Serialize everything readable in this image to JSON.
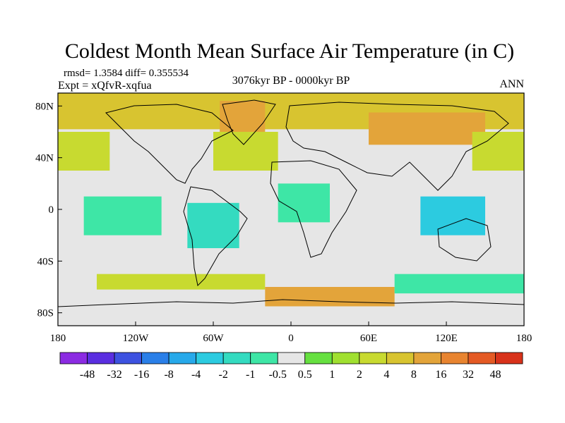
{
  "chart_data": {
    "type": "heatmap",
    "title": "Coldest Month Mean Surface Air Temperature (in C)",
    "stats_line": "rmsd= 1.3584 diff= 0.355534",
    "expt_line": "Expt = xQfvR-xqfua",
    "period": "3076kyr BP - 0000kyr BP",
    "season": "ANN",
    "x_ticks": [
      "180",
      "120W",
      "60W",
      "0",
      "60E",
      "120E",
      "180"
    ],
    "y_ticks": [
      "80N",
      "40N",
      "0",
      "40S",
      "80S"
    ],
    "x_range": [
      -180,
      180
    ],
    "y_range": [
      -90,
      90
    ],
    "colorbar": {
      "colors": [
        "#8b2be2",
        "#5a2ee0",
        "#3d52e0",
        "#2a7fe8",
        "#27a9ea",
        "#2ccbe0",
        "#34dbc0",
        "#3ee6a6",
        "#e6e6e6",
        "#66e040",
        "#a0e030",
        "#c8da30",
        "#d8c430",
        "#e3a43a",
        "#e88430",
        "#e45a24",
        "#d8321a"
      ],
      "labels": [
        "-48",
        "-32",
        "-16",
        "-8",
        "-4",
        "-2",
        "-1",
        "-0.5",
        "0.5",
        "1",
        "2",
        "4",
        "8",
        "16",
        "32",
        "48"
      ]
    },
    "regions": [
      {
        "name": "arctic-warming",
        "value": 4,
        "lon": [
          -180,
          180
        ],
        "lat": [
          62,
          90
        ]
      },
      {
        "name": "greenland-warming",
        "value": 8,
        "lon": [
          -55,
          -20
        ],
        "lat": [
          60,
          84
        ]
      },
      {
        "name": "siberia-warming",
        "value": 8,
        "lon": [
          60,
          150
        ],
        "lat": [
          50,
          75
        ]
      },
      {
        "name": "north-pacific-warming",
        "value": 2,
        "lon": [
          140,
          -140
        ],
        "lat": [
          30,
          60
        ]
      },
      {
        "name": "north-atlantic-warming",
        "value": 2,
        "lon": [
          -60,
          -10
        ],
        "lat": [
          30,
          60
        ]
      },
      {
        "name": "tropical-pacific-cooling",
        "value": -1,
        "lon": [
          -160,
          -100
        ],
        "lat": [
          -20,
          10
        ]
      },
      {
        "name": "south-america-cooling",
        "value": -2,
        "lon": [
          -80,
          -40
        ],
        "lat": [
          -30,
          5
        ]
      },
      {
        "name": "africa-cooling",
        "value": -1,
        "lon": [
          -10,
          30
        ],
        "lat": [
          -10,
          20
        ]
      },
      {
        "name": "indonesia-cooling",
        "value": -4,
        "lon": [
          100,
          150
        ],
        "lat": [
          -20,
          10
        ]
      },
      {
        "name": "southern-ocean-warming",
        "value": 2,
        "lon": [
          -150,
          -20
        ],
        "lat": [
          -62,
          -50
        ]
      },
      {
        "name": "antarctic-margin-warming",
        "value": 8,
        "lon": [
          -20,
          80
        ],
        "lat": [
          -75,
          -60
        ]
      },
      {
        "name": "southern-ocean-cooling",
        "value": -1,
        "lon": [
          80,
          180
        ],
        "lat": [
          -65,
          -50
        ]
      }
    ]
  }
}
